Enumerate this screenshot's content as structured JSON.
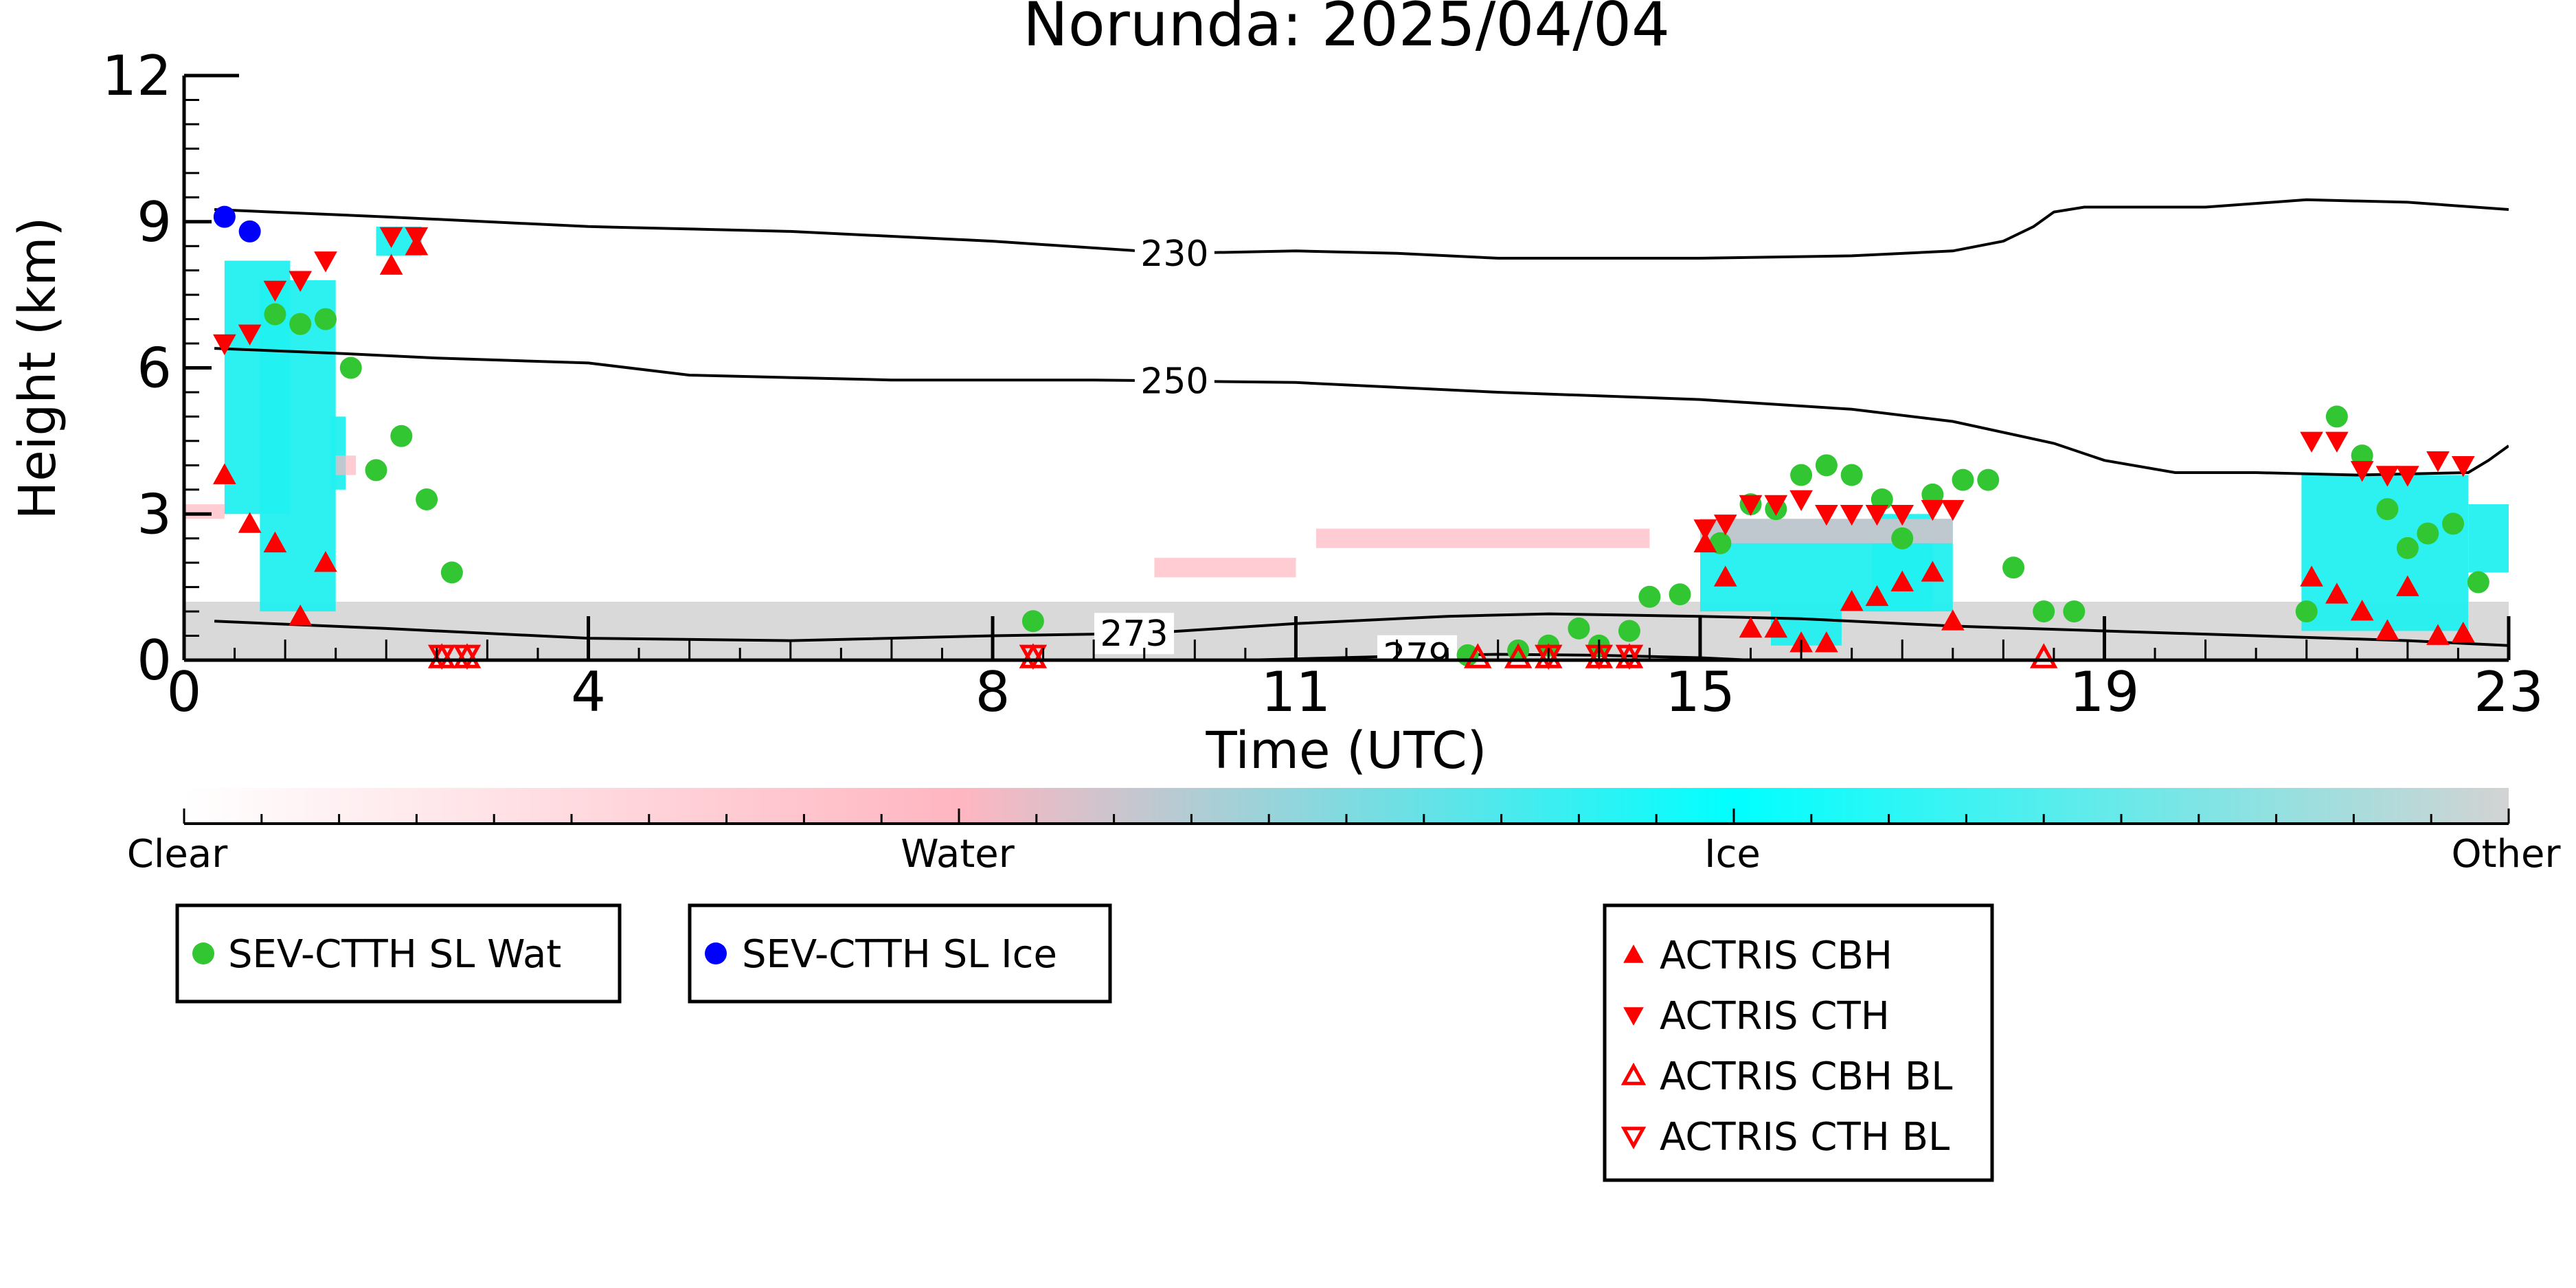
{
  "chart_data": {
    "type": "scatter",
    "title": "Norunda: 2025/04/04",
    "xlabel": "Time (UTC)",
    "ylabel": "Height (km)",
    "xlim": [
      0,
      23
    ],
    "ylim": [
      0,
      12
    ],
    "x_ticks": [
      0,
      4,
      8,
      11,
      15,
      19,
      23
    ],
    "x_tick_labels": [
      "0",
      "4",
      "8",
      "11",
      "15",
      "19",
      "23"
    ],
    "y_ticks": [
      0,
      3,
      6,
      9,
      12
    ],
    "y_tick_labels": [
      "0",
      "3",
      "6",
      "9",
      "12"
    ],
    "colorbar": {
      "labels": [
        "Clear",
        "Water",
        "Ice",
        "Other"
      ],
      "colors": [
        "#ffffff",
        "#ffb6c1",
        "#00ffff",
        "#d3d3d3"
      ]
    },
    "contours": [
      {
        "label": "230",
        "label_at": 9.8,
        "points": [
          [
            0.3,
            9.25
          ],
          [
            2,
            9.1
          ],
          [
            4,
            8.9
          ],
          [
            6,
            8.8
          ],
          [
            8,
            8.6
          ],
          [
            9.8,
            8.35
          ],
          [
            11,
            8.4
          ],
          [
            12,
            8.35
          ],
          [
            13,
            8.25
          ],
          [
            15,
            8.25
          ],
          [
            16.5,
            8.3
          ],
          [
            17.5,
            8.4
          ],
          [
            18,
            8.6
          ],
          [
            18.3,
            8.9
          ],
          [
            18.5,
            9.2
          ],
          [
            18.8,
            9.3
          ],
          [
            20,
            9.3
          ],
          [
            21,
            9.45
          ],
          [
            22,
            9.4
          ],
          [
            23,
            9.25
          ]
        ]
      },
      {
        "label": "250",
        "label_at": 9.8,
        "points": [
          [
            0.3,
            6.4
          ],
          [
            1.5,
            6.3
          ],
          [
            2.5,
            6.2
          ],
          [
            4,
            6.1
          ],
          [
            5,
            5.85
          ],
          [
            7,
            5.75
          ],
          [
            9,
            5.75
          ],
          [
            11,
            5.7
          ],
          [
            13,
            5.5
          ],
          [
            15,
            5.35
          ],
          [
            16.5,
            5.15
          ],
          [
            17.5,
            4.9
          ],
          [
            18.5,
            4.45
          ],
          [
            19,
            4.1
          ],
          [
            19.7,
            3.85
          ],
          [
            20.5,
            3.85
          ],
          [
            21.5,
            3.8
          ],
          [
            22.6,
            3.85
          ],
          [
            22.8,
            4.1
          ],
          [
            23,
            4.4
          ]
        ]
      },
      {
        "label": "273",
        "label_at": 9.4,
        "points": [
          [
            0.3,
            0.8
          ],
          [
            2,
            0.65
          ],
          [
            4,
            0.45
          ],
          [
            6,
            0.4
          ],
          [
            8,
            0.5
          ],
          [
            9.5,
            0.55
          ],
          [
            11,
            0.75
          ],
          [
            12.5,
            0.9
          ],
          [
            13.5,
            0.95
          ],
          [
            15,
            0.9
          ],
          [
            16,
            0.85
          ],
          [
            17.5,
            0.7
          ],
          [
            19,
            0.6
          ],
          [
            20.5,
            0.5
          ],
          [
            22,
            0.4
          ],
          [
            23,
            0.3
          ]
        ]
      },
      {
        "label": "279",
        "label_at": 12.2,
        "points": [
          [
            10.5,
            0
          ],
          [
            12,
            0.08
          ],
          [
            13,
            0.12
          ],
          [
            14,
            0.1
          ],
          [
            15,
            0.05
          ],
          [
            15.5,
            0
          ]
        ]
      }
    ],
    "series": [
      {
        "name": "SEV-CTTH SL Wat",
        "marker": "circle",
        "color": "#33c633",
        "points": [
          [
            0.9,
            7.1
          ],
          [
            1.15,
            6.9
          ],
          [
            1.4,
            7.0
          ],
          [
            1.65,
            6.0
          ],
          [
            1.9,
            3.9
          ],
          [
            2.15,
            4.6
          ],
          [
            2.4,
            3.3
          ],
          [
            2.65,
            1.8
          ],
          [
            8.4,
            0.8
          ],
          [
            12.7,
            0.1
          ],
          [
            13.2,
            0.2
          ],
          [
            13.5,
            0.3
          ],
          [
            13.8,
            0.65
          ],
          [
            14.0,
            0.3
          ],
          [
            14.3,
            0.6
          ],
          [
            14.5,
            1.3
          ],
          [
            14.8,
            1.35
          ],
          [
            15.2,
            2.4
          ],
          [
            15.5,
            3.2
          ],
          [
            15.75,
            3.1
          ],
          [
            16.0,
            3.8
          ],
          [
            16.25,
            4.0
          ],
          [
            16.5,
            3.8
          ],
          [
            16.8,
            3.3
          ],
          [
            17.0,
            2.5
          ],
          [
            17.3,
            3.4
          ],
          [
            17.6,
            3.7
          ],
          [
            17.85,
            3.7
          ],
          [
            18.1,
            1.9
          ],
          [
            18.4,
            1.0
          ],
          [
            18.7,
            1.0
          ],
          [
            21.0,
            1.0
          ],
          [
            21.3,
            5.0
          ],
          [
            21.55,
            4.2
          ],
          [
            21.8,
            3.1
          ],
          [
            22.0,
            2.3
          ],
          [
            22.2,
            2.6
          ],
          [
            22.45,
            2.8
          ],
          [
            22.7,
            1.6
          ]
        ]
      },
      {
        "name": "SEV-CTTH SL Ice",
        "marker": "circle",
        "color": "#0000ff",
        "points": [
          [
            0.4,
            9.1
          ],
          [
            0.65,
            8.8
          ]
        ]
      },
      {
        "name": "ACTRIS CBH",
        "marker": "triangle-up",
        "color": "#ff0000",
        "points": [
          [
            0.4,
            3.8
          ],
          [
            0.65,
            2.8
          ],
          [
            0.9,
            2.4
          ],
          [
            1.15,
            0.9
          ],
          [
            1.4,
            2.0
          ],
          [
            2.05,
            8.1
          ],
          [
            2.3,
            8.5
          ],
          [
            15.05,
            2.4
          ],
          [
            15.25,
            1.7
          ],
          [
            15.5,
            0.65
          ],
          [
            15.75,
            0.65
          ],
          [
            16.0,
            0.35
          ],
          [
            16.25,
            0.35
          ],
          [
            16.5,
            1.2
          ],
          [
            16.75,
            1.3
          ],
          [
            17.0,
            1.6
          ],
          [
            17.3,
            1.8
          ],
          [
            17.5,
            0.8
          ],
          [
            21.05,
            1.7
          ],
          [
            21.3,
            1.35
          ],
          [
            21.55,
            1.0
          ],
          [
            21.8,
            0.6
          ],
          [
            22.0,
            1.5
          ],
          [
            22.3,
            0.5
          ],
          [
            22.55,
            0.55
          ]
        ]
      },
      {
        "name": "ACTRIS CTH",
        "marker": "triangle-down",
        "color": "#ff0000",
        "points": [
          [
            0.4,
            6.5
          ],
          [
            0.65,
            6.7
          ],
          [
            0.9,
            7.6
          ],
          [
            1.15,
            7.8
          ],
          [
            1.4,
            8.2
          ],
          [
            2.05,
            8.7
          ],
          [
            2.3,
            8.7
          ],
          [
            15.05,
            2.7
          ],
          [
            15.25,
            2.8
          ],
          [
            15.5,
            3.2
          ],
          [
            15.75,
            3.2
          ],
          [
            16.0,
            3.3
          ],
          [
            16.25,
            3.0
          ],
          [
            16.5,
            3.0
          ],
          [
            16.75,
            3.0
          ],
          [
            17.0,
            3.0
          ],
          [
            17.3,
            3.1
          ],
          [
            17.5,
            3.1
          ],
          [
            21.05,
            4.5
          ],
          [
            21.3,
            4.5
          ],
          [
            21.55,
            3.9
          ],
          [
            21.8,
            3.8
          ],
          [
            22.0,
            3.8
          ],
          [
            22.3,
            4.1
          ],
          [
            22.55,
            4.0
          ]
        ]
      },
      {
        "name": "ACTRIS CBH BL",
        "marker": "triangle-up-open",
        "color": "#ff0000",
        "points": [
          [
            2.55,
            0.05
          ],
          [
            2.8,
            0.05
          ],
          [
            8.4,
            0.05
          ],
          [
            12.8,
            0.05
          ],
          [
            13.2,
            0.05
          ],
          [
            13.5,
            0.05
          ],
          [
            14.0,
            0.05
          ],
          [
            14.3,
            0.05
          ],
          [
            18.4,
            0.05
          ]
        ]
      },
      {
        "name": "ACTRIS CTH BL",
        "marker": "triangle-down-open",
        "color": "#ff0000",
        "points": [
          [
            2.55,
            0.1
          ],
          [
            2.8,
            0.1
          ],
          [
            8.4,
            0.1
          ],
          [
            13.5,
            0.1
          ],
          [
            14.0,
            0.1
          ],
          [
            14.3,
            0.1
          ]
        ]
      }
    ]
  },
  "legends": {
    "sev": [
      {
        "label": "SEV-CTTH SL Wat",
        "marker": "circle",
        "color": "#33c633"
      }
    ],
    "sev_ice": [
      {
        "label": "SEV-CTTH SL Ice",
        "marker": "circle",
        "color": "#0000ff"
      }
    ],
    "actris": [
      {
        "label": "ACTRIS CBH",
        "marker": "triangle-up",
        "color": "#ff0000"
      },
      {
        "label": "ACTRIS CTH",
        "marker": "triangle-down",
        "color": "#ff0000"
      },
      {
        "label": "ACTRIS CBH BL",
        "marker": "triangle-up-open",
        "color": "#ff0000"
      },
      {
        "label": "ACTRIS CTH BL",
        "marker": "triangle-down-open",
        "color": "#ff0000"
      }
    ]
  }
}
